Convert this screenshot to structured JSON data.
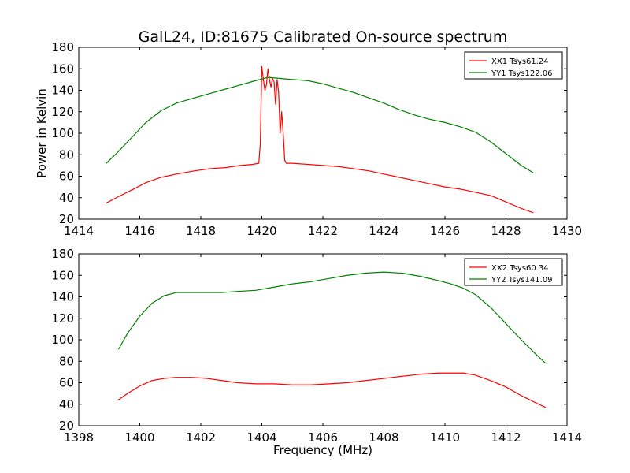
{
  "chart_data": [
    {
      "type": "line",
      "title": "GalL24, ID:81675 Calibrated On-source spectrum",
      "xlabel": "",
      "ylabel": "Power in Kelvin",
      "xlim": [
        1414,
        1430
      ],
      "ylim": [
        20,
        180
      ],
      "xticks": [
        1414,
        1416,
        1418,
        1420,
        1422,
        1424,
        1426,
        1428,
        1430
      ],
      "yticks": [
        20,
        40,
        60,
        80,
        100,
        120,
        140,
        160,
        180
      ],
      "legend_position": "top-right",
      "grid": false,
      "series": [
        {
          "name": "XX1 Tsys61.24",
          "color": "#ff0000",
          "x": [
            1414.9,
            1415.3,
            1415.8,
            1416.2,
            1416.7,
            1417.2,
            1417.8,
            1418.3,
            1418.8,
            1419.3,
            1419.7,
            1419.9,
            1419.95,
            1420.0,
            1420.05,
            1420.1,
            1420.15,
            1420.2,
            1420.25,
            1420.3,
            1420.35,
            1420.4,
            1420.45,
            1420.5,
            1420.55,
            1420.6,
            1420.65,
            1420.7,
            1420.75,
            1420.8,
            1420.85,
            1421.0,
            1421.5,
            1422.0,
            1422.5,
            1423.0,
            1423.5,
            1424.0,
            1424.5,
            1425.0,
            1425.5,
            1426.0,
            1426.5,
            1427.0,
            1427.5,
            1428.0,
            1428.5,
            1428.9
          ],
          "y": [
            35,
            41,
            48,
            54,
            59,
            62,
            65,
            67,
            68,
            70,
            71,
            72,
            90,
            162,
            150,
            140,
            145,
            160,
            150,
            143,
            151,
            148,
            127,
            150,
            138,
            100,
            120,
            100,
            75,
            72,
            72,
            72,
            71,
            70,
            69,
            67,
            65,
            62,
            59,
            56,
            53,
            50,
            48,
            45,
            42,
            36,
            30,
            26
          ]
        },
        {
          "name": "YY1 Tsys122.06",
          "color": "#008000",
          "x": [
            1414.9,
            1415.3,
            1415.8,
            1416.2,
            1416.7,
            1417.2,
            1417.8,
            1418.3,
            1418.8,
            1419.3,
            1419.8,
            1420.2,
            1420.6,
            1421.0,
            1421.5,
            1422.0,
            1422.5,
            1423.0,
            1423.5,
            1424.0,
            1424.5,
            1425.0,
            1425.5,
            1426.0,
            1426.5,
            1427.0,
            1427.5,
            1428.0,
            1428.5,
            1428.9
          ],
          "y": [
            72,
            83,
            98,
            110,
            121,
            128,
            133,
            137,
            141,
            145,
            149,
            152,
            151,
            150,
            149,
            146,
            142,
            138,
            133,
            128,
            122,
            117,
            113,
            110,
            106,
            101,
            92,
            81,
            70,
            63
          ]
        }
      ]
    },
    {
      "type": "line",
      "title": "",
      "xlabel": "Frequency (MHz)",
      "ylabel": "",
      "xlim": [
        1398,
        1414
      ],
      "ylim": [
        20,
        180
      ],
      "xticks": [
        1398,
        1400,
        1402,
        1404,
        1406,
        1408,
        1410,
        1412,
        1414
      ],
      "yticks": [
        20,
        40,
        60,
        80,
        100,
        120,
        140,
        160,
        180
      ],
      "legend_position": "top-right",
      "grid": false,
      "series": [
        {
          "name": "XX2 Tsys60.34",
          "color": "#ff0000",
          "x": [
            1399.3,
            1399.6,
            1400.0,
            1400.4,
            1400.8,
            1401.2,
            1401.7,
            1402.2,
            1402.7,
            1403.2,
            1403.8,
            1404.4,
            1405.0,
            1405.6,
            1406.2,
            1406.8,
            1407.4,
            1408.0,
            1408.6,
            1409.2,
            1409.8,
            1410.2,
            1410.6,
            1411.0,
            1411.5,
            1412.0,
            1412.5,
            1413.0,
            1413.3
          ],
          "y": [
            44,
            50,
            57,
            62,
            64,
            65,
            65,
            64,
            62,
            60,
            59,
            59,
            58,
            58,
            59,
            60,
            62,
            64,
            66,
            68,
            69,
            69,
            69,
            67,
            62,
            56,
            48,
            41,
            37
          ]
        },
        {
          "name": "YY2 Tsys141.09",
          "color": "#008000",
          "x": [
            1399.3,
            1399.6,
            1400.0,
            1400.4,
            1400.8,
            1401.2,
            1401.7,
            1402.2,
            1402.7,
            1403.2,
            1403.8,
            1404.4,
            1405.0,
            1405.6,
            1406.2,
            1406.8,
            1407.4,
            1408.0,
            1408.6,
            1409.2,
            1409.8,
            1410.2,
            1410.6,
            1411.0,
            1411.5,
            1412.0,
            1412.5,
            1413.0,
            1413.3
          ],
          "y": [
            91,
            106,
            122,
            134,
            141,
            144,
            144,
            144,
            144,
            145,
            146,
            149,
            152,
            154,
            157,
            160,
            162,
            163,
            162,
            159,
            155,
            152,
            148,
            142,
            130,
            115,
            100,
            86,
            78
          ]
        }
      ]
    }
  ]
}
